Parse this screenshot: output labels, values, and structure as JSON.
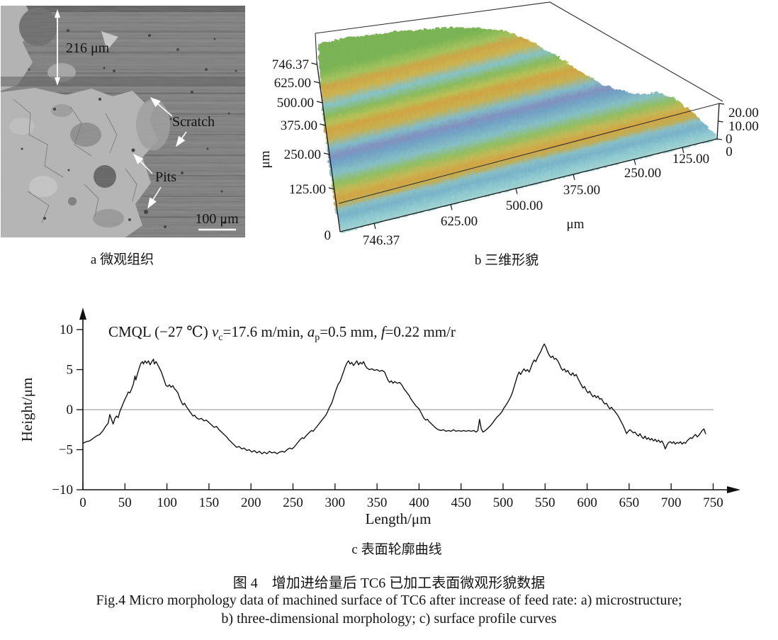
{
  "figure": {
    "caption_zh": "图 4　增加进给量后 TC6 已加工表面微观形貌数据",
    "caption_en_line1": "Fig.4 Micro morphology data of machined surface of TC6 after increase of feed rate: a) microstructure;",
    "caption_en_line2": "b) three-dimensional morphology; c) surface profile curves"
  },
  "panel_a": {
    "caption": "a 微观组织",
    "depth_marker": "216 μm",
    "scratch_label": "Scratch",
    "pits_label": "Pits",
    "scale_bar_label": "100 μm"
  },
  "panel_b": {
    "caption": "b 三维形貌"
  },
  "panel_c": {
    "caption": "c 表面轮廓曲线"
  },
  "chart_data": [
    {
      "type": "line",
      "title": "CMQL (−27 ℃) vc=17.6 m/min, ap=0.5 mm, f=0.22 mm/r",
      "annotation_parts": {
        "p1": "CMQL (−27 ℃) ",
        "v": "v",
        "v_sub": "c",
        "p2": "=17.6 m/min, ",
        "a": "a",
        "a_sub": "p",
        "p3": "=0.5 mm, ",
        "f": "f",
        "p4": "=0.22 mm/r"
      },
      "xlabel": "Length/μm",
      "ylabel": "Height/μm",
      "xlim": [
        0,
        750
      ],
      "ylim": [
        -10,
        10
      ],
      "x_tick_labels": [
        "0",
        "50",
        "100",
        "150",
        "200",
        "250",
        "300",
        "350",
        "400",
        "450",
        "500",
        "550",
        "600",
        "650",
        "700",
        "750"
      ],
      "y_tick_labels": [
        "10",
        "5",
        "0",
        "−5",
        "−10"
      ],
      "grid": "zero-line-only",
      "line_color": "#1a1a1a",
      "points": [
        [
          0,
          -4.2
        ],
        [
          4,
          -4.0
        ],
        [
          8,
          -3.9
        ],
        [
          12,
          -3.6
        ],
        [
          16,
          -3.3
        ],
        [
          20,
          -3.1
        ],
        [
          24,
          -2.6
        ],
        [
          27,
          -2.1
        ],
        [
          30,
          -1.7
        ],
        [
          32,
          -0.6
        ],
        [
          34,
          -1.2
        ],
        [
          36,
          -1.8
        ],
        [
          38,
          -1.1
        ],
        [
          40,
          -0.8
        ],
        [
          42,
          -1.0
        ],
        [
          44,
          -0.2
        ],
        [
          46,
          0.3
        ],
        [
          48,
          0.8
        ],
        [
          50,
          1.3
        ],
        [
          52,
          1.7
        ],
        [
          54,
          2.2
        ],
        [
          56,
          2.1
        ],
        [
          58,
          2.6
        ],
        [
          60,
          3.2
        ],
        [
          62,
          4.2
        ],
        [
          63,
          3.7
        ],
        [
          65,
          4.5
        ],
        [
          67,
          5.2
        ],
        [
          69,
          5.8
        ],
        [
          71,
          6.0
        ],
        [
          72,
          5.7
        ],
        [
          74,
          6.1
        ],
        [
          76,
          5.8
        ],
        [
          78,
          6.1
        ],
        [
          80,
          5.6
        ],
        [
          82,
          6.0
        ],
        [
          84,
          6.3
        ],
        [
          85,
          5.7
        ],
        [
          87,
          6.0
        ],
        [
          89,
          5.6
        ],
        [
          91,
          5.2
        ],
        [
          93,
          4.8
        ],
        [
          95,
          4.2
        ],
        [
          97,
          3.6
        ],
        [
          99,
          3.0
        ],
        [
          101,
          2.9
        ],
        [
          103,
          3.1
        ],
        [
          105,
          2.8
        ],
        [
          107,
          3.0
        ],
        [
          109,
          2.6
        ],
        [
          111,
          2.4
        ],
        [
          113,
          2.1
        ],
        [
          115,
          1.5
        ],
        [
          117,
          1.0
        ],
        [
          119,
          0.6
        ],
        [
          121,
          0.8
        ],
        [
          123,
          0.4
        ],
        [
          125,
          0.1
        ],
        [
          127,
          -0.2
        ],
        [
          129,
          -0.5
        ],
        [
          131,
          -0.8
        ],
        [
          133,
          -0.7
        ],
        [
          135,
          -1.0
        ],
        [
          138,
          -1.2
        ],
        [
          141,
          -1.1
        ],
        [
          144,
          -1.4
        ],
        [
          147,
          -1.3
        ],
        [
          150,
          -1.6
        ],
        [
          153,
          -1.9
        ],
        [
          156,
          -2.2
        ],
        [
          159,
          -2.1
        ],
        [
          162,
          -2.5
        ],
        [
          165,
          -2.8
        ],
        [
          168,
          -3.1
        ],
        [
          171,
          -3.4
        ],
        [
          174,
          -3.8
        ],
        [
          177,
          -4.1
        ],
        [
          180,
          -4.4
        ],
        [
          183,
          -4.7
        ],
        [
          186,
          -4.6
        ],
        [
          189,
          -4.9
        ],
        [
          192,
          -4.8
        ],
        [
          195,
          -5.1
        ],
        [
          198,
          -5.0
        ],
        [
          201,
          -5.3
        ],
        [
          204,
          -5.1
        ],
        [
          207,
          -5.4
        ],
        [
          210,
          -5.2
        ],
        [
          213,
          -5.5
        ],
        [
          216,
          -5.3
        ],
        [
          219,
          -5.5
        ],
        [
          222,
          -5.2
        ],
        [
          225,
          -5.4
        ],
        [
          228,
          -5.3
        ],
        [
          231,
          -5.5
        ],
        [
          234,
          -5.3
        ],
        [
          237,
          -5.2
        ],
        [
          240,
          -5.3
        ],
        [
          243,
          -5.0
        ],
        [
          246,
          -4.8
        ],
        [
          249,
          -4.9
        ],
        [
          252,
          -4.6
        ],
        [
          255,
          -4.2
        ],
        [
          258,
          -3.8
        ],
        [
          261,
          -3.5
        ],
        [
          263,
          -3.6
        ],
        [
          266,
          -3.2
        ],
        [
          269,
          -2.9
        ],
        [
          272,
          -2.6
        ],
        [
          274,
          -2.7
        ],
        [
          277,
          -2.3
        ],
        [
          280,
          -1.9
        ],
        [
          283,
          -1.5
        ],
        [
          286,
          -1.1
        ],
        [
          289,
          -0.7
        ],
        [
          291,
          -0.3
        ],
        [
          293,
          0.2
        ],
        [
          296,
          0.8
        ],
        [
          298,
          1.4
        ],
        [
          300,
          2.1
        ],
        [
          302,
          2.7
        ],
        [
          304,
          3.2
        ],
        [
          306,
          3.5
        ],
        [
          308,
          4.1
        ],
        [
          310,
          4.7
        ],
        [
          312,
          5.3
        ],
        [
          314,
          5.8
        ],
        [
          316,
          6.1
        ],
        [
          318,
          5.7
        ],
        [
          320,
          5.9
        ],
        [
          322,
          5.5
        ],
        [
          324,
          5.8
        ],
        [
          326,
          6.1
        ],
        [
          328,
          5.6
        ],
        [
          330,
          5.9
        ],
        [
          332,
          5.7
        ],
        [
          334,
          6.0
        ],
        [
          336,
          5.5
        ],
        [
          338,
          5.2
        ],
        [
          341,
          5.0
        ],
        [
          344,
          5.1
        ],
        [
          347,
          4.9
        ],
        [
          350,
          5.0
        ],
        [
          353,
          4.8
        ],
        [
          356,
          4.9
        ],
        [
          359,
          4.7
        ],
        [
          361,
          4.2
        ],
        [
          363,
          3.7
        ],
        [
          365,
          3.4
        ],
        [
          367,
          3.6
        ],
        [
          369,
          3.3
        ],
        [
          371,
          3.5
        ],
        [
          374,
          3.3
        ],
        [
          377,
          3.4
        ],
        [
          380,
          3.0
        ],
        [
          382,
          2.6
        ],
        [
          385,
          2.2
        ],
        [
          388,
          1.8
        ],
        [
          390,
          1.4
        ],
        [
          392,
          1.1
        ],
        [
          394,
          0.8
        ],
        [
          396,
          0.5
        ],
        [
          398,
          0.3
        ],
        [
          400,
          0.1
        ],
        [
          402,
          -0.3
        ],
        [
          404,
          -0.7
        ],
        [
          406,
          -1.1
        ],
        [
          408,
          -1.3
        ],
        [
          410,
          -1.2
        ],
        [
          412,
          -1.5
        ],
        [
          415,
          -1.8
        ],
        [
          418,
          -2.1
        ],
        [
          420,
          -2.3
        ],
        [
          423,
          -2.5
        ],
        [
          426,
          -2.6
        ],
        [
          429,
          -2.5
        ],
        [
          432,
          -2.7
        ],
        [
          435,
          -2.6
        ],
        [
          438,
          -2.7
        ],
        [
          441,
          -2.5
        ],
        [
          444,
          -2.7
        ],
        [
          447,
          -2.6
        ],
        [
          450,
          -2.7
        ],
        [
          453,
          -2.6
        ],
        [
          456,
          -2.7
        ],
        [
          459,
          -2.6
        ],
        [
          462,
          -2.7
        ],
        [
          465,
          -2.6
        ],
        [
          468,
          -2.8
        ],
        [
          470,
          -2.6
        ],
        [
          472,
          -1.2
        ],
        [
          474,
          -2.4
        ],
        [
          476,
          -2.8
        ],
        [
          479,
          -2.6
        ],
        [
          482,
          -2.3
        ],
        [
          485,
          -2.0
        ],
        [
          488,
          -1.6
        ],
        [
          490,
          -1.3
        ],
        [
          493,
          -0.9
        ],
        [
          496,
          -0.6
        ],
        [
          499,
          -0.2
        ],
        [
          501,
          0.2
        ],
        [
          503,
          0.5
        ],
        [
          506,
          1.0
        ],
        [
          509,
          1.6
        ],
        [
          511,
          2.1
        ],
        [
          513,
          2.8
        ],
        [
          515,
          3.5
        ],
        [
          517,
          4.2
        ],
        [
          519,
          4.7
        ],
        [
          521,
          4.4
        ],
        [
          523,
          4.8
        ],
        [
          525,
          5.1
        ],
        [
          527,
          4.8
        ],
        [
          529,
          5.0
        ],
        [
          531,
          4.7
        ],
        [
          533,
          5.2
        ],
        [
          535,
          5.8
        ],
        [
          537,
          6.2
        ],
        [
          539,
          6.0
        ],
        [
          541,
          6.5
        ],
        [
          543,
          6.9
        ],
        [
          545,
          7.3
        ],
        [
          547,
          7.8
        ],
        [
          549,
          8.2
        ],
        [
          551,
          7.8
        ],
        [
          553,
          7.2
        ],
        [
          555,
          6.8
        ],
        [
          557,
          6.5
        ],
        [
          559,
          6.7
        ],
        [
          561,
          6.3
        ],
        [
          563,
          6.4
        ],
        [
          565,
          6.1
        ],
        [
          567,
          5.7
        ],
        [
          569,
          5.2
        ],
        [
          571,
          4.9
        ],
        [
          573,
          5.1
        ],
        [
          575,
          4.7
        ],
        [
          577,
          4.9
        ],
        [
          579,
          4.5
        ],
        [
          581,
          4.3
        ],
        [
          583,
          4.6
        ],
        [
          585,
          4.2
        ],
        [
          587,
          4.4
        ],
        [
          589,
          3.9
        ],
        [
          591,
          3.5
        ],
        [
          593,
          3.1
        ],
        [
          595,
          2.7
        ],
        [
          597,
          2.9
        ],
        [
          599,
          2.4
        ],
        [
          601,
          2.1
        ],
        [
          603,
          2.3
        ],
        [
          605,
          1.9
        ],
        [
          607,
          1.6
        ],
        [
          609,
          1.8
        ],
        [
          611,
          1.5
        ],
        [
          613,
          1.7
        ],
        [
          615,
          1.3
        ],
        [
          617,
          1.4
        ],
        [
          619,
          1.0
        ],
        [
          621,
          0.7
        ],
        [
          623,
          0.8
        ],
        [
          625,
          0.4
        ],
        [
          627,
          0.1
        ],
        [
          629,
          0.3
        ],
        [
          631,
          0.0
        ],
        [
          633,
          -0.2
        ],
        [
          635,
          -0.5
        ],
        [
          637,
          -0.8
        ],
        [
          639,
          -1.2
        ],
        [
          641,
          -1.6
        ],
        [
          643,
          -2.0
        ],
        [
          645,
          -2.5
        ],
        [
          647,
          -3.0
        ],
        [
          649,
          -2.7
        ],
        [
          651,
          -2.5
        ],
        [
          653,
          -2.7
        ],
        [
          655,
          -2.9
        ],
        [
          657,
          -2.8
        ],
        [
          659,
          -3.1
        ],
        [
          661,
          -3.3
        ],
        [
          663,
          -3.0
        ],
        [
          665,
          -3.4
        ],
        [
          667,
          -3.6
        ],
        [
          669,
          -3.3
        ],
        [
          671,
          -3.7
        ],
        [
          673,
          -3.5
        ],
        [
          675,
          -3.8
        ],
        [
          677,
          -3.6
        ],
        [
          679,
          -3.9
        ],
        [
          681,
          -3.7
        ],
        [
          683,
          -4.0
        ],
        [
          685,
          -3.8
        ],
        [
          687,
          -4.1
        ],
        [
          689,
          -3.9
        ],
        [
          691,
          -4.3
        ],
        [
          693,
          -4.9
        ],
        [
          695,
          -4.4
        ],
        [
          697,
          -4.1
        ],
        [
          699,
          -4.0
        ],
        [
          701,
          -4.2
        ],
        [
          703,
          -4.0
        ],
        [
          705,
          -4.3
        ],
        [
          707,
          -4.1
        ],
        [
          709,
          -4.2
        ],
        [
          711,
          -4.0
        ],
        [
          713,
          -4.3
        ],
        [
          715,
          -4.1
        ],
        [
          717,
          -4.2
        ],
        [
          719,
          -3.9
        ],
        [
          721,
          -3.7
        ],
        [
          723,
          -3.5
        ],
        [
          725,
          -3.6
        ],
        [
          727,
          -3.3
        ],
        [
          729,
          -3.1
        ],
        [
          731,
          -3.4
        ],
        [
          733,
          -3.2
        ],
        [
          735,
          -2.9
        ],
        [
          737,
          -2.6
        ],
        [
          739,
          -2.4
        ],
        [
          741,
          -3.0
        ]
      ]
    },
    {
      "type": "surface",
      "description": "3D surface topography of machined TC6: three parallel diagonal feed ridges (yellow-orange crests), green slopes and blue-teal valleys inside a wireframe box",
      "x_axis": {
        "unit": "μm",
        "origin_label": "0",
        "tick_labels": [
          "746.37",
          "625.00",
          "500.00",
          "375.00",
          "250.00",
          "125.00"
        ]
      },
      "y_axis": {
        "unit": "μm",
        "origin_label": "0",
        "tick_labels": [
          "746.37",
          "625.00",
          "500.00",
          "375.00",
          "250.00",
          "125.00"
        ]
      },
      "z_axis": {
        "tick_labels": [
          "20.00",
          "10.00",
          "0"
        ]
      },
      "palette": [
        "#d9a843",
        "#bec556",
        "#8ac05e",
        "#82c1d2",
        "#6fa6cf",
        "#8093c8"
      ]
    }
  ]
}
